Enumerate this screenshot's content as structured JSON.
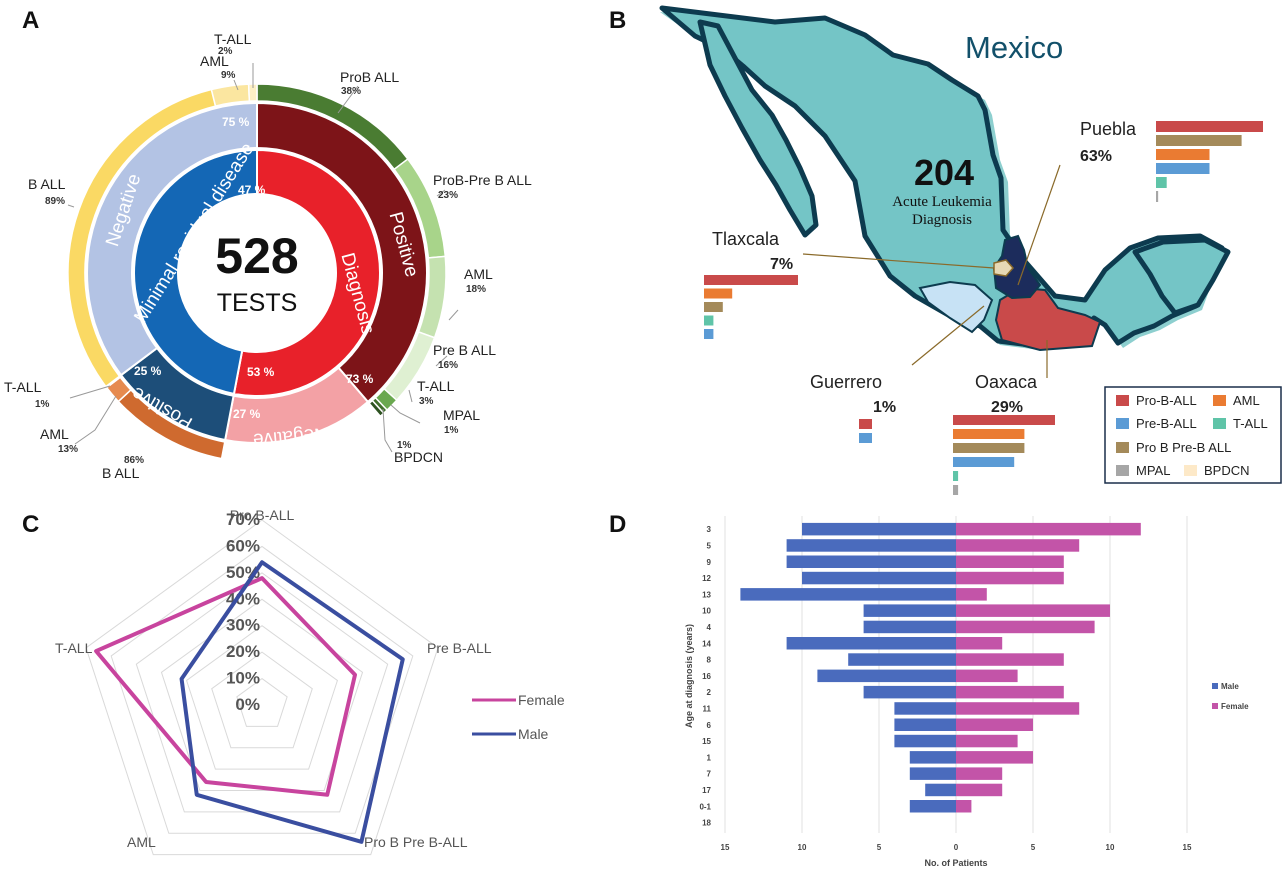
{
  "panel_labels": [
    "A",
    "B",
    "C",
    "D"
  ],
  "chart_data": [
    {
      "type": "pie",
      "panel": "A",
      "center": {
        "number": "528",
        "label": "TESTS"
      },
      "inner_ring": [
        {
          "name": "Minimal residual disease",
          "value": 47,
          "label": "47 %",
          "color": "#1467b5"
        },
        {
          "name": "Diagnosis",
          "value": 53,
          "label": "53 %",
          "color": "#e8212a"
        }
      ],
      "middle_ring": [
        {
          "name": "Positive",
          "value": 73,
          "label": "73 %",
          "color": "#7d1418",
          "group": "Diagnosis"
        },
        {
          "name": "Negative",
          "value": 27,
          "label": "27 %",
          "color": "#f3a1a5",
          "group": "Diagnosis"
        },
        {
          "name": "Positive",
          "value": 25,
          "label": "25 %",
          "color": "#1d4e79",
          "group": "Minimal residual disease"
        },
        {
          "name": "Negative",
          "value": 75,
          "label": "75 %",
          "color": "#b3c3e4",
          "group": "Minimal residual disease"
        }
      ],
      "outer_ring": [
        {
          "name": "ProB ALL",
          "pct": "38%",
          "value": 38,
          "color": "#4a7c32"
        },
        {
          "name": "ProB-Pre B ALL",
          "pct": "23%",
          "value": 23,
          "color": "#a8d48a"
        },
        {
          "name": "AML",
          "pct": "18%",
          "value": 18,
          "color": "#c5e2b0"
        },
        {
          "name": "Pre B ALL",
          "pct": "16%",
          "value": 16,
          "color": "#dff0d2"
        },
        {
          "name": "T-ALL",
          "pct": "3%",
          "value": 3,
          "color": "#6aa84f"
        },
        {
          "name": "MPAL",
          "pct": "1%",
          "value": 1,
          "color": "#3f6e2a"
        },
        {
          "name": "BPDCN",
          "pct": "1%",
          "value": 1,
          "color": "#2d5220"
        },
        {
          "name": "B ALL",
          "pct": "86%",
          "value": 86,
          "color": "#cf6a2f"
        },
        {
          "name": "AML",
          "pct": "13%",
          "value": 13,
          "color": "#e68a4f"
        },
        {
          "name": "T-ALL",
          "pct": "1%",
          "value": 1,
          "color": "#9b4a1c"
        },
        {
          "name": "B ALL",
          "pct": "89%",
          "value": 89,
          "color": "#fad964"
        },
        {
          "name": "AML",
          "pct": "9%",
          "value": 9,
          "color": "#fbe6a0"
        },
        {
          "name": "T-ALL",
          "pct": "2%",
          "value": 2,
          "color": "#fdf0c4"
        }
      ]
    },
    {
      "type": "bar",
      "panel": "B",
      "map_title": "Mexico",
      "center_number": "204",
      "center_line1": "Acute Leukemia",
      "center_line2": "Diagnosis",
      "states": [
        {
          "name": "Puebla",
          "pct": "63%",
          "values": [
            10,
            8,
            5,
            5,
            1,
            0.2
          ]
        },
        {
          "name": "Tlaxcala",
          "pct": "7%",
          "values": [
            10,
            3,
            2,
            1,
            1
          ]
        },
        {
          "name": "Guerrero",
          "pct": "1%",
          "values": [
            1,
            1
          ]
        },
        {
          "name": "Oaxaca",
          "pct": "29%",
          "values": [
            10,
            7,
            7,
            6,
            0.5,
            0.5
          ]
        }
      ],
      "legend": [
        {
          "name": "Pro-B-ALL",
          "color": "#c94a4a"
        },
        {
          "name": "AML",
          "color": "#ea7b32"
        },
        {
          "name": "Pre-B-ALL",
          "color": "#5b9bd5"
        },
        {
          "name": "T-ALL",
          "color": "#5fc4a8"
        },
        {
          "name": "Pro B Pre-B ALL",
          "color": "#a48a5a"
        },
        {
          "name": "MPAL",
          "color": "#a6a6a6"
        },
        {
          "name": "BPDCN",
          "color": "#fde9c8"
        }
      ]
    },
    {
      "type": "line",
      "subtype": "radar",
      "panel": "C",
      "axes": [
        "Pro B-ALL",
        "Pre B-ALL",
        "Pro B Pre B-ALL",
        "AML",
        "T-ALL"
      ],
      "ticks": [
        "0%",
        "10%",
        "20%",
        "30%",
        "40%",
        "50%",
        "60%",
        "70%"
      ],
      "rmax": 70,
      "series": [
        {
          "name": "Female",
          "color": "#c8449e",
          "values": [
            48,
            37,
            42,
            36,
            66
          ]
        },
        {
          "name": "Male",
          "color": "#3a4ea0",
          "values": [
            54,
            56,
            64,
            42,
            32
          ]
        }
      ]
    },
    {
      "type": "bar",
      "subtype": "population-pyramid",
      "panel": "D",
      "categories": [
        "3",
        "5",
        "9",
        "12",
        "13",
        "10",
        "4",
        "14",
        "8",
        "16",
        "2",
        "11",
        "6",
        "15",
        "1",
        "7",
        "17",
        "0-1",
        "18"
      ],
      "series": [
        {
          "name": "Male",
          "color": "#4a6bbd",
          "values": [
            10,
            11,
            11,
            10,
            14,
            6,
            6,
            11,
            7,
            9,
            6,
            4,
            4,
            4,
            3,
            3,
            2,
            3,
            0
          ]
        },
        {
          "name": "Female",
          "color": "#c354a8",
          "values": [
            12,
            8,
            7,
            7,
            2,
            10,
            9,
            3,
            7,
            4,
            7,
            8,
            5,
            4,
            5,
            3,
            3,
            1,
            0
          ]
        }
      ],
      "xticks": [
        "15",
        "10",
        "5",
        "0",
        "5",
        "10",
        "15"
      ],
      "xlabel": "No. of Patients",
      "ylabel": "Age at diagnosis (years)",
      "xlim": [
        -15,
        15
      ]
    }
  ]
}
